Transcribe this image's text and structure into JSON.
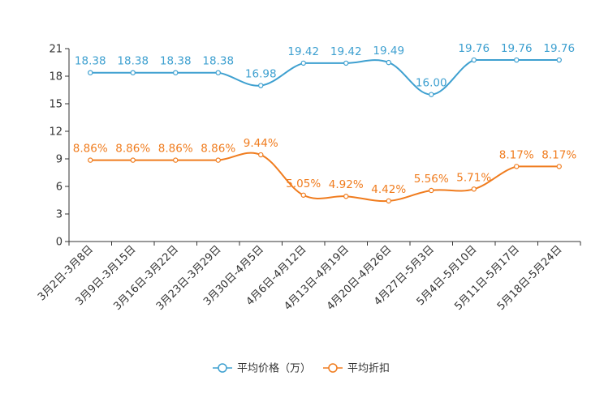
{
  "chart_data": {
    "type": "line",
    "title": "",
    "xlabel": "",
    "ylabel": "",
    "ylim": [
      0,
      21
    ],
    "yticks": [
      0,
      3,
      6,
      9,
      12,
      15,
      18,
      21
    ],
    "grid": false,
    "legend_position": "bottom",
    "categories": [
      "3月2日-3月8日",
      "3月9日-3月15日",
      "3月16日-3月22日",
      "3月23日-3月29日",
      "3月30日-4月5日",
      "4月6日-4月12日",
      "4月13日-4月19日",
      "4月20日-4月26日",
      "4月27日-5月3日",
      "5月4日-5月10日",
      "5月11日-5月17日",
      "5月18日-5月24日"
    ],
    "series": [
      {
        "name": "平均价格（万）",
        "color": "#3ea0d0",
        "values": [
          18.38,
          18.38,
          18.38,
          18.38,
          16.98,
          19.42,
          19.42,
          19.49,
          16.0,
          19.76,
          19.76,
          19.76
        ],
        "labels": [
          "18.38",
          "18.38",
          "18.38",
          "18.38",
          "16.98",
          "19.42",
          "19.42",
          "19.49",
          "16.00",
          "19.76",
          "19.76",
          "19.76"
        ]
      },
      {
        "name": "平均折扣",
        "color": "#f07c1e",
        "values": [
          8.86,
          8.86,
          8.86,
          8.86,
          9.44,
          5.05,
          4.92,
          4.42,
          5.56,
          5.71,
          8.17,
          8.17
        ],
        "labels": [
          "8.86%",
          "8.86%",
          "8.86%",
          "8.86%",
          "9.44%",
          "5.05%",
          "4.92%",
          "4.42%",
          "5.56%",
          "5.71%",
          "8.17%",
          "8.17%"
        ]
      }
    ]
  }
}
